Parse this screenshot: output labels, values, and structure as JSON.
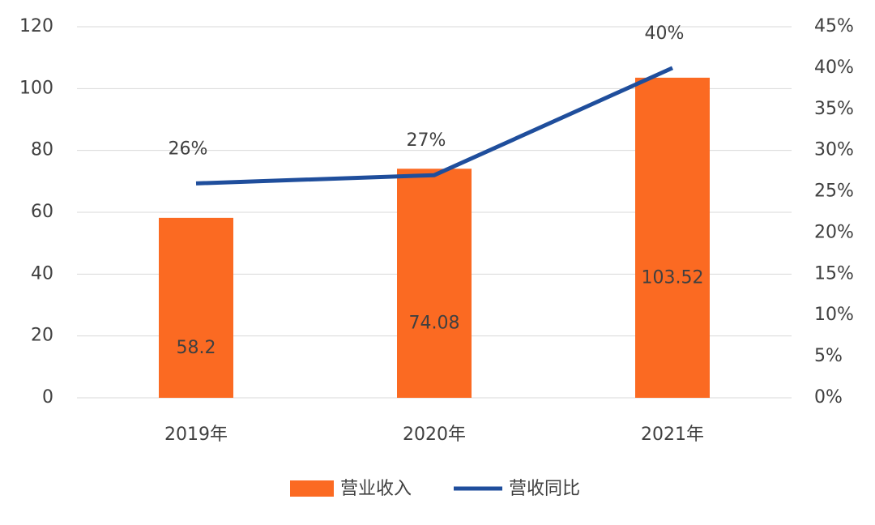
{
  "chart_data": {
    "type": "combo",
    "categories": [
      "2019年",
      "2020年",
      "2021年"
    ],
    "series": [
      {
        "name": "营业收入",
        "type": "bar",
        "color": "#fb6a22",
        "values": [
          58.2,
          74.08,
          103.52
        ]
      },
      {
        "name": "营收同比",
        "type": "line",
        "axis": "y2",
        "color": "#1f4e9c",
        "values": [
          26,
          27,
          40
        ],
        "value_labels": [
          "26%",
          "27%",
          "40%"
        ]
      }
    ],
    "ylim": [
      0,
      120
    ],
    "yticks": [
      0,
      20,
      40,
      60,
      80,
      100,
      120
    ],
    "y2lim": [
      0,
      45
    ],
    "y2ticks": [
      {
        "value": 0,
        "label": "0%"
      },
      {
        "value": 5,
        "label": "5%"
      },
      {
        "value": 10,
        "label": "10%"
      },
      {
        "value": 15,
        "label": "15%"
      },
      {
        "value": 20,
        "label": "20%"
      },
      {
        "value": 25,
        "label": "25%"
      },
      {
        "value": 30,
        "label": "30%"
      },
      {
        "value": 35,
        "label": "35%"
      },
      {
        "value": 40,
        "label": "40%"
      },
      {
        "value": 45,
        "label": "45%"
      }
    ],
    "grid": true,
    "legend": "bottom"
  }
}
